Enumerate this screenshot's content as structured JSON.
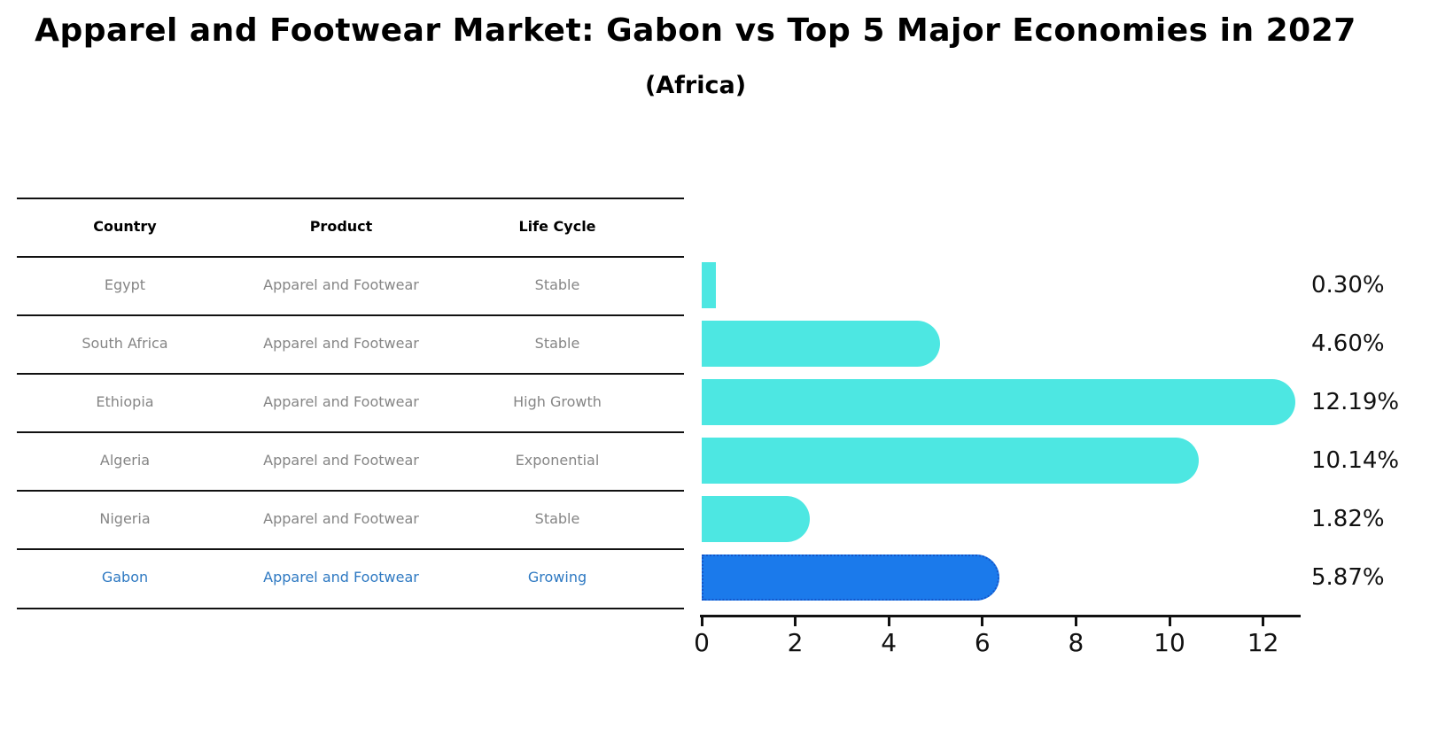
{
  "page": {
    "title": "Apparel and Footwear Market: Gabon vs Top 5 Major Economies in 2027",
    "subtitle": "(Africa)"
  },
  "table": {
    "headers": [
      "Country",
      "Product",
      "Life Cycle"
    ],
    "rows": [
      {
        "country": "Egypt",
        "product": "Apparel and Footwear",
        "life_cycle": "Stable",
        "highlighted": false
      },
      {
        "country": "South Africa",
        "product": "Apparel and Footwear",
        "life_cycle": "Stable",
        "highlighted": false
      },
      {
        "country": "Ethiopia",
        "product": "Apparel and Footwear",
        "life_cycle": "High Growth",
        "highlighted": false
      },
      {
        "country": "Algeria",
        "product": "Apparel and Footwear",
        "life_cycle": "Exponential",
        "highlighted": false
      },
      {
        "country": "Nigeria",
        "product": "Apparel and Footwear",
        "life_cycle": "Stable",
        "highlighted": false
      },
      {
        "country": "Gabon",
        "product": "Apparel and Footwear",
        "life_cycle": "Growing",
        "highlighted": true
      }
    ]
  },
  "chart_data": {
    "type": "bar",
    "orientation": "horizontal",
    "title": "Apparel and Footwear Market: Gabon vs Top 5 Major Economies in 2027",
    "subtitle": "(Africa)",
    "categories": [
      "Egypt",
      "South Africa",
      "Ethiopia",
      "Algeria",
      "Nigeria",
      "Gabon"
    ],
    "values": [
      0.3,
      4.6,
      12.19,
      10.14,
      1.82,
      5.87
    ],
    "value_labels": [
      "0.30%",
      "4.60%",
      "12.19%",
      "10.14%",
      "1.82%",
      "5.87%"
    ],
    "x_ticks": [
      0,
      2,
      4,
      6,
      8,
      10,
      12
    ],
    "xlim": [
      0,
      12.8
    ],
    "xlabel": "",
    "ylabel": "",
    "grid": false,
    "legend": false,
    "highlight_index": 5,
    "colors": {
      "bar": "#4de7e2",
      "highlight_bar": "#1b7aeb",
      "highlight_border": "#1556c9",
      "highlight_text": "#2e79c2",
      "row_text": "#858585",
      "axis": "#111111"
    }
  }
}
